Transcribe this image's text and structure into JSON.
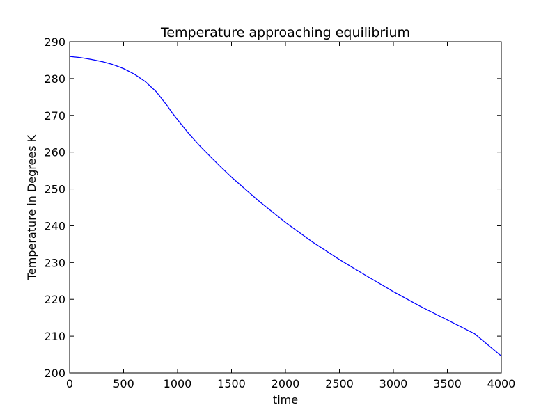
{
  "chart_data": {
    "type": "line",
    "title": "Temperature approaching equilibrium",
    "xlabel": "time",
    "ylabel": "Temperature in Degrees K",
    "xlim": [
      0,
      4000
    ],
    "ylim": [
      200,
      290
    ],
    "xticks": [
      0,
      500,
      1000,
      1500,
      2000,
      2500,
      3000,
      3500,
      4000
    ],
    "yticks": [
      200,
      210,
      220,
      230,
      240,
      250,
      260,
      270,
      280,
      290
    ],
    "grid": false,
    "series": [
      {
        "color": "#0000ff",
        "x": [
          0,
          100,
          200,
          300,
          400,
          500,
          600,
          700,
          800,
          900,
          950,
          1000,
          1100,
          1200,
          1300,
          1400,
          1500,
          1750,
          2000,
          2250,
          2500,
          2750,
          3000,
          3250,
          3500,
          3750,
          4000
        ],
        "y": [
          286,
          285.7,
          285.2,
          284.6,
          283.8,
          282.7,
          281.2,
          279.2,
          276.5,
          272.8,
          270.7,
          268.8,
          265.2,
          261.9,
          258.9,
          256.0,
          253.2,
          246.8,
          240.9,
          235.6,
          230.8,
          226.4,
          222.1,
          218.1,
          214.4,
          210.7,
          204.6
        ]
      }
    ]
  }
}
